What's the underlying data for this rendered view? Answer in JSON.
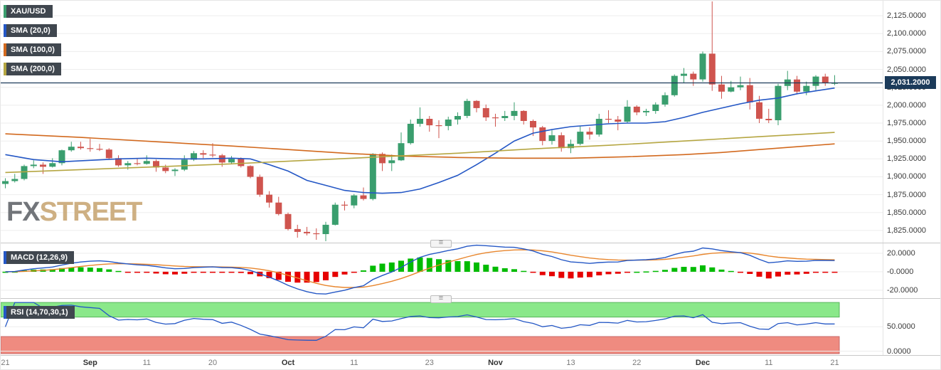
{
  "legend": {
    "symbol": "XAU/USD",
    "sma20": "SMA (20,0)",
    "sma100": "SMA (100,0)",
    "sma200": "SMA (200,0)",
    "macd": "MACD (12,26,9)",
    "rsi": "RSI (14,70,30,1)"
  },
  "watermark": {
    "fx": "FX",
    "street": "STREET"
  },
  "ui": {
    "handle": "≡"
  },
  "colors": {
    "up": "#3a9e6e",
    "down": "#cf544e",
    "sma20": "#2457c5",
    "sma100": "#d2691e",
    "sma200": "#b5a642",
    "macd_line": "#2457c5",
    "macd_signal": "#e8862d",
    "hist_up": "#00bb00",
    "hist_down": "#e60000",
    "rsi_line": "#2457c5",
    "overbought_band": "#8ae88a",
    "oversold_band": "#ef8b80",
    "price_line": "#1c3b5a",
    "price_badge_bg": "#1c3b5a",
    "badge_bg": "#40474f"
  },
  "price_axis": {
    "current": {
      "label": "2,031.2000",
      "value": 2031.2
    },
    "ticks": [
      {
        "label": "2,125.0000",
        "value": 2125
      },
      {
        "label": "2,100.0000",
        "value": 2100
      },
      {
        "label": "2,075.0000",
        "value": 2075
      },
      {
        "label": "2,050.0000",
        "value": 2050
      },
      {
        "label": "2,025.0000",
        "value": 2025
      },
      {
        "label": "2,000.0000",
        "value": 2000
      },
      {
        "label": "1,975.0000",
        "value": 1975
      },
      {
        "label": "1,950.0000",
        "value": 1950
      },
      {
        "label": "1,925.0000",
        "value": 1925
      },
      {
        "label": "1,900.0000",
        "value": 1900
      },
      {
        "label": "1,875.0000",
        "value": 1875
      },
      {
        "label": "1,850.0000",
        "value": 1850
      },
      {
        "label": "1,825.0000",
        "value": 1825
      }
    ],
    "macd_ticks": [
      {
        "label": "20.0000",
        "value": 20
      },
      {
        "label": "-0.0000",
        "value": 0
      },
      {
        "label": "-20.0000",
        "value": -20
      }
    ],
    "rsi_ticks": [
      {
        "label": "50.0000",
        "value": 50
      },
      {
        "label": "0.0000",
        "value": 0
      }
    ]
  },
  "x_axis": {
    "ticks": [
      {
        "index": 0,
        "label": "21",
        "month": false
      },
      {
        "index": 9,
        "label": "Sep",
        "month": true
      },
      {
        "index": 15,
        "label": "11",
        "month": false
      },
      {
        "index": 22,
        "label": "20",
        "month": false
      },
      {
        "index": 30,
        "label": "Oct",
        "month": true
      },
      {
        "index": 37,
        "label": "11",
        "month": false
      },
      {
        "index": 45,
        "label": "23",
        "month": false
      },
      {
        "index": 52,
        "label": "Nov",
        "month": true
      },
      {
        "index": 60,
        "label": "13",
        "month": false
      },
      {
        "index": 67,
        "label": "22",
        "month": false
      },
      {
        "index": 74,
        "label": "Dec",
        "month": true
      },
      {
        "index": 81,
        "label": "11",
        "month": false
      },
      {
        "index": 88,
        "label": "21",
        "month": false
      }
    ]
  },
  "chart_data": {
    "type": "candlestick",
    "symbol": "XAU/USD",
    "ylim": [
      1808,
      2146
    ],
    "y_ticks": [
      2125,
      2100,
      2075,
      2050,
      2025,
      2000,
      1975,
      1950,
      1925,
      1900,
      1875,
      1850,
      1825
    ],
    "last_price": 2031.2,
    "dates": [
      "08-21",
      "08-22",
      "08-23",
      "08-24",
      "08-25",
      "08-28",
      "08-29",
      "08-30",
      "08-31",
      "09-01",
      "09-04",
      "09-05",
      "09-06",
      "09-07",
      "09-08",
      "09-11",
      "09-12",
      "09-13",
      "09-14",
      "09-15",
      "09-18",
      "09-19",
      "09-20",
      "09-21",
      "09-22",
      "09-25",
      "09-26",
      "09-27",
      "09-28",
      "09-29",
      "10-02",
      "10-03",
      "10-04",
      "10-05",
      "10-06",
      "10-09",
      "10-10",
      "10-11",
      "10-12",
      "10-13",
      "10-16",
      "10-17",
      "10-18",
      "10-19",
      "10-20",
      "10-23",
      "10-24",
      "10-25",
      "10-26",
      "10-27",
      "10-30",
      "10-31",
      "11-01",
      "11-02",
      "11-03",
      "11-06",
      "11-07",
      "11-08",
      "11-09",
      "11-10",
      "11-13",
      "11-14",
      "11-15",
      "11-16",
      "11-17",
      "11-20",
      "11-21",
      "11-22",
      "11-23",
      "11-24",
      "11-27",
      "11-28",
      "11-29",
      "11-30",
      "12-01",
      "12-04",
      "12-05",
      "12-06",
      "12-07",
      "12-08",
      "12-11",
      "12-12",
      "12-13",
      "12-14",
      "12-15",
      "12-18",
      "12-19",
      "12-20",
      "12-21"
    ],
    "ohlc": [
      [
        1890,
        1898,
        1884,
        1894
      ],
      [
        1894,
        1904,
        1892,
        1897
      ],
      [
        1897,
        1917,
        1895,
        1915
      ],
      [
        1915,
        1923,
        1912,
        1917
      ],
      [
        1917,
        1920,
        1904,
        1914
      ],
      [
        1914,
        1926,
        1913,
        1919
      ],
      [
        1919,
        1938,
        1916,
        1937
      ],
      [
        1937,
        1949,
        1935,
        1942
      ],
      [
        1942,
        1949,
        1938,
        1940
      ],
      [
        1940,
        1953,
        1935,
        1939
      ],
      [
        1939,
        1946,
        1936,
        1938
      ],
      [
        1938,
        1940,
        1924,
        1926
      ],
      [
        1926,
        1930,
        1914,
        1916
      ],
      [
        1916,
        1922,
        1910,
        1919
      ],
      [
        1919,
        1925,
        1916,
        1918
      ],
      [
        1918,
        1930,
        1917,
        1922
      ],
      [
        1922,
        1924,
        1907,
        1913
      ],
      [
        1913,
        1917,
        1905,
        1908
      ],
      [
        1908,
        1912,
        1901,
        1910
      ],
      [
        1910,
        1930,
        1908,
        1924
      ],
      [
        1924,
        1936,
        1922,
        1933
      ],
      [
        1933,
        1937,
        1926,
        1931
      ],
      [
        1931,
        1947,
        1927,
        1930
      ],
      [
        1930,
        1932,
        1914,
        1920
      ],
      [
        1920,
        1929,
        1918,
        1925
      ],
      [
        1925,
        1927,
        1913,
        1915
      ],
      [
        1915,
        1916,
        1898,
        1900
      ],
      [
        1900,
        1903,
        1872,
        1875
      ],
      [
        1875,
        1880,
        1857,
        1864
      ],
      [
        1864,
        1872,
        1846,
        1848
      ],
      [
        1848,
        1850,
        1825,
        1827
      ],
      [
        1827,
        1833,
        1815,
        1823
      ],
      [
        1823,
        1830,
        1818,
        1821
      ],
      [
        1821,
        1828,
        1812,
        1820
      ],
      [
        1820,
        1837,
        1810,
        1833
      ],
      [
        1833,
        1864,
        1832,
        1861
      ],
      [
        1861,
        1866,
        1853,
        1860
      ],
      [
        1860,
        1876,
        1856,
        1874
      ],
      [
        1874,
        1885,
        1867,
        1869
      ],
      [
        1869,
        1933,
        1867,
        1932
      ],
      [
        1932,
        1934,
        1908,
        1919
      ],
      [
        1919,
        1931,
        1908,
        1923
      ],
      [
        1923,
        1962,
        1922,
        1947
      ],
      [
        1947,
        1980,
        1945,
        1974
      ],
      [
        1974,
        1997,
        1970,
        1981
      ],
      [
        1981,
        1985,
        1963,
        1972
      ],
      [
        1972,
        1979,
        1954,
        1971
      ],
      [
        1971,
        1984,
        1965,
        1980
      ],
      [
        1980,
        1990,
        1973,
        1985
      ],
      [
        1985,
        2009,
        1982,
        2006
      ],
      [
        2006,
        2007,
        1990,
        1996
      ],
      [
        1996,
        2001,
        1978,
        1983
      ],
      [
        1983,
        1988,
        1970,
        1982
      ],
      [
        1982,
        1992,
        1978,
        1985
      ],
      [
        1985,
        2004,
        1979,
        1992
      ],
      [
        1992,
        1993,
        1973,
        1978
      ],
      [
        1978,
        1980,
        1957,
        1969
      ],
      [
        1969,
        1971,
        1944,
        1950
      ],
      [
        1950,
        1965,
        1945,
        1958
      ],
      [
        1958,
        1962,
        1935,
        1940
      ],
      [
        1940,
        1952,
        1933,
        1946
      ],
      [
        1946,
        1971,
        1944,
        1963
      ],
      [
        1963,
        1969,
        1952,
        1959
      ],
      [
        1959,
        1988,
        1956,
        1981
      ],
      [
        1981,
        1993,
        1975,
        1980
      ],
      [
        1980,
        1985,
        1965,
        1977
      ],
      [
        1977,
        2007,
        1975,
        1998
      ],
      [
        1998,
        2000,
        1986,
        1990
      ],
      [
        1990,
        1995,
        1985,
        1992
      ],
      [
        1992,
        2004,
        1988,
        2001
      ],
      [
        2001,
        2018,
        1998,
        2014
      ],
      [
        2014,
        2043,
        2012,
        2041
      ],
      [
        2041,
        2052,
        2031,
        2044
      ],
      [
        2044,
        2047,
        2027,
        2036
      ],
      [
        2036,
        2075,
        2033,
        2072
      ],
      [
        2072,
        2145,
        2020,
        2029
      ],
      [
        2029,
        2041,
        2009,
        2019
      ],
      [
        2019,
        2034,
        2018,
        2025
      ],
      [
        2025,
        2040,
        2021,
        2028
      ],
      [
        2028,
        2038,
        1994,
        2004
      ],
      [
        2004,
        2013,
        1975,
        1981
      ],
      [
        1981,
        1995,
        1975,
        1979
      ],
      [
        1979,
        2030,
        1972,
        2027
      ],
      [
        2027,
        2048,
        2021,
        2036
      ],
      [
        2036,
        2041,
        2015,
        2019
      ],
      [
        2019,
        2033,
        2014,
        2027
      ],
      [
        2027,
        2042,
        2021,
        2040
      ],
      [
        2040,
        2044,
        2027,
        2031
      ],
      [
        2031,
        2042,
        2028,
        2031.2
      ]
    ],
    "overlays": [
      {
        "name": "SMA 20",
        "color_key": "sma20",
        "points": [
          [
            0,
            1931
          ],
          [
            3,
            1924
          ],
          [
            6,
            1921
          ],
          [
            9,
            1923
          ],
          [
            12,
            1925
          ],
          [
            15,
            1926
          ],
          [
            18,
            1925
          ],
          [
            21,
            1925
          ],
          [
            24,
            1926
          ],
          [
            26,
            1925
          ],
          [
            28,
            1917
          ],
          [
            30,
            1908
          ],
          [
            32,
            1895
          ],
          [
            34,
            1888
          ],
          [
            36,
            1881
          ],
          [
            38,
            1878
          ],
          [
            40,
            1877
          ],
          [
            42,
            1878
          ],
          [
            44,
            1883
          ],
          [
            46,
            1892
          ],
          [
            48,
            1902
          ],
          [
            50,
            1917
          ],
          [
            52,
            1933
          ],
          [
            54,
            1950
          ],
          [
            56,
            1961
          ],
          [
            58,
            1966
          ],
          [
            60,
            1970
          ],
          [
            62,
            1972
          ],
          [
            64,
            1974
          ],
          [
            66,
            1975
          ],
          [
            68,
            1975
          ],
          [
            70,
            1977
          ],
          [
            72,
            1983
          ],
          [
            74,
            1990
          ],
          [
            76,
            1996
          ],
          [
            78,
            2002
          ],
          [
            80,
            2007
          ],
          [
            82,
            2010
          ],
          [
            84,
            2016
          ],
          [
            86,
            2020
          ],
          [
            88,
            2024
          ]
        ]
      },
      {
        "name": "SMA 100",
        "color_key": "sma100",
        "points": [
          [
            0,
            1960
          ],
          [
            8,
            1955
          ],
          [
            16,
            1949
          ],
          [
            24,
            1943
          ],
          [
            30,
            1938
          ],
          [
            36,
            1933
          ],
          [
            42,
            1929
          ],
          [
            48,
            1927
          ],
          [
            54,
            1926
          ],
          [
            60,
            1926
          ],
          [
            66,
            1928
          ],
          [
            72,
            1931
          ],
          [
            76,
            1934
          ],
          [
            80,
            1938
          ],
          [
            84,
            1942
          ],
          [
            88,
            1946
          ]
        ]
      },
      {
        "name": "SMA 200",
        "color_key": "sma200",
        "points": [
          [
            0,
            1906
          ],
          [
            8,
            1910
          ],
          [
            16,
            1914
          ],
          [
            24,
            1918
          ],
          [
            32,
            1923
          ],
          [
            40,
            1928
          ],
          [
            48,
            1933
          ],
          [
            56,
            1939
          ],
          [
            64,
            1944
          ],
          [
            72,
            1950
          ],
          [
            80,
            1956
          ],
          [
            88,
            1962
          ]
        ]
      }
    ],
    "indicators": [
      {
        "name": "MACD",
        "params": [
          12,
          26,
          9
        ],
        "ylim": [
          -27,
          30
        ],
        "grid": [
          20,
          0,
          -20
        ]
      },
      {
        "name": "RSI",
        "params": [
          14,
          70,
          30,
          1
        ],
        "ylim": [
          -8,
          106
        ],
        "grid": [
          50,
          0
        ],
        "overbought": 70,
        "oversold": 30
      }
    ]
  }
}
